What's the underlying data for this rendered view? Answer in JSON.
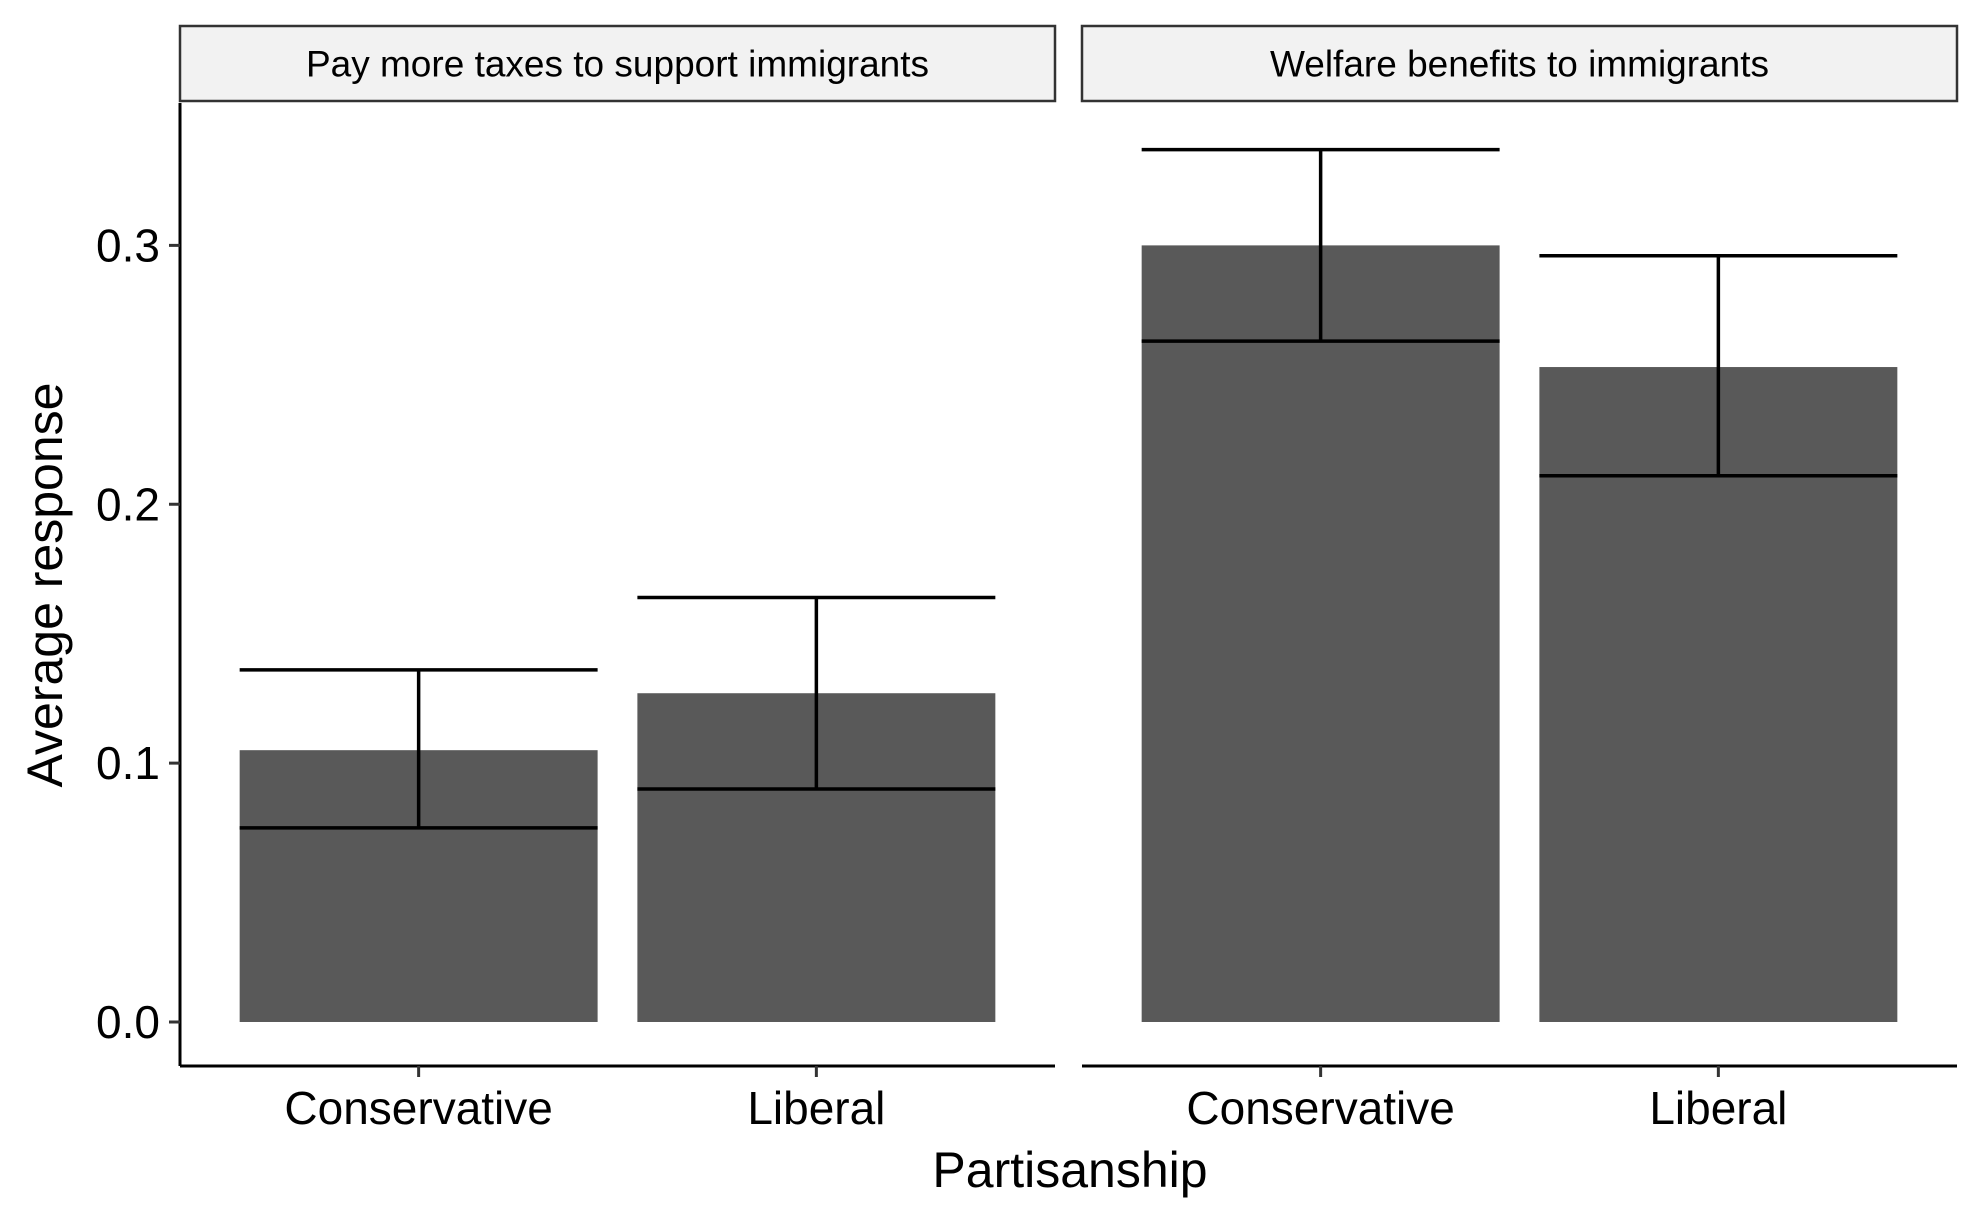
{
  "chart_data": {
    "type": "bar",
    "xlabel": "Partisanship",
    "ylabel": "Average response",
    "ylim": [
      -0.017,
      0.355
    ],
    "yticks": [
      0.0,
      0.1,
      0.2,
      0.3
    ],
    "ytick_labels": [
      "0.0",
      "0.1",
      "0.2",
      "0.3"
    ],
    "categories": [
      "Conservative",
      "Liberal"
    ],
    "bar_color": "#595959",
    "strip_fill": "#f2f2f2",
    "panels": [
      {
        "title": "Pay more taxes to support immigrants",
        "values": [
          0.105,
          0.127
        ],
        "error_low": [
          0.075,
          0.09
        ],
        "error_high": [
          0.136,
          0.164
        ]
      },
      {
        "title": "Welfare benefits to immigrants",
        "values": [
          0.3,
          0.253
        ],
        "error_low": [
          0.263,
          0.211
        ],
        "error_high": [
          0.337,
          0.296
        ]
      }
    ],
    "grid": false,
    "legend": "none"
  }
}
